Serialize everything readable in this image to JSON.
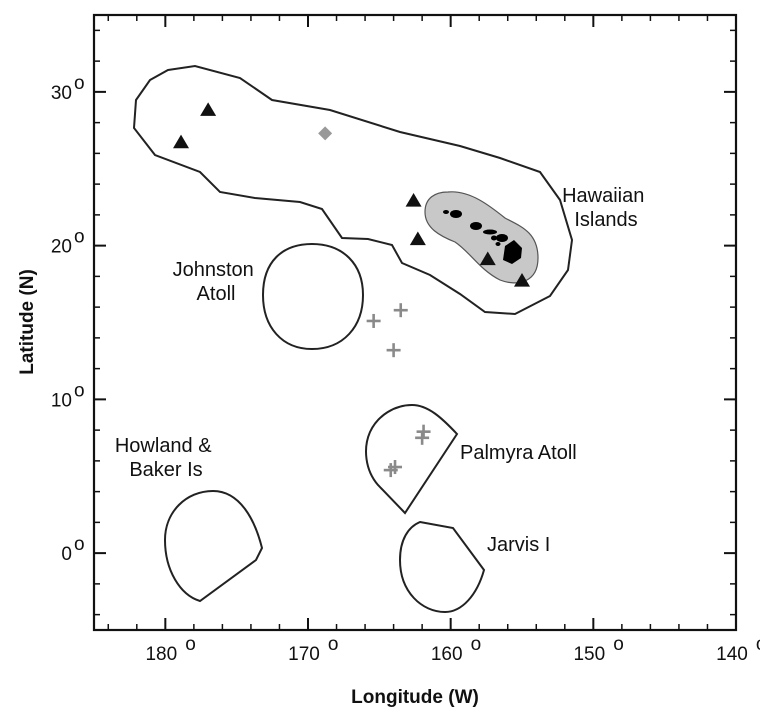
{
  "axes": {
    "x_title": "Longitude (W)",
    "y_title": "Latitude (N)",
    "x_ticks": [
      {
        "value": 180,
        "label": "180"
      },
      {
        "value": 170,
        "label": "170"
      },
      {
        "value": 160,
        "label": "160"
      },
      {
        "value": 150,
        "label": "150"
      },
      {
        "value": 140,
        "label": "140"
      }
    ],
    "y_ticks": [
      {
        "value": 30,
        "label": "30"
      },
      {
        "value": 20,
        "label": "20"
      },
      {
        "value": 10,
        "label": "10"
      },
      {
        "value": 0,
        "label": "0"
      }
    ],
    "degree_symbol": "o",
    "x_range_w": [
      185,
      140
    ],
    "y_range_n": [
      -5,
      35
    ]
  },
  "regions": [
    {
      "id": "hawaiian-islands",
      "label_lines": [
        "Hawaiian",
        "Islands"
      ]
    },
    {
      "id": "johnston-atoll",
      "label_lines": [
        "Johnston",
        "Atoll"
      ]
    },
    {
      "id": "howland-baker",
      "label_lines": [
        "Howland &",
        "Baker Is"
      ]
    },
    {
      "id": "palmyra-atoll",
      "label_lines": [
        "Palmyra Atoll"
      ]
    },
    {
      "id": "jarvis-island",
      "label_lines": [
        "Jarvis I"
      ]
    }
  ],
  "markers": {
    "triangle_color": "#111111",
    "diamond_color": "#999999",
    "cross_color": "#8a8a8a",
    "triangles": [
      {
        "lon": 178.9,
        "lat": 26.7
      },
      {
        "lon": 177.0,
        "lat": 28.8
      },
      {
        "lon": 162.6,
        "lat": 22.9
      },
      {
        "lon": 162.3,
        "lat": 20.4
      },
      {
        "lon": 157.4,
        "lat": 19.1
      },
      {
        "lon": 155.0,
        "lat": 17.7
      }
    ],
    "diamonds": [
      {
        "lon": 168.8,
        "lat": 27.3
      }
    ],
    "crosses": [
      {
        "lon": 165.4,
        "lat": 15.1
      },
      {
        "lon": 163.5,
        "lat": 15.8
      },
      {
        "lon": 164.0,
        "lat": 13.2
      },
      {
        "lon": 161.9,
        "lat": 7.9
      },
      {
        "lon": 162.0,
        "lat": 7.5
      },
      {
        "lon": 163.9,
        "lat": 5.6
      },
      {
        "lon": 164.2,
        "lat": 5.4
      }
    ]
  }
}
